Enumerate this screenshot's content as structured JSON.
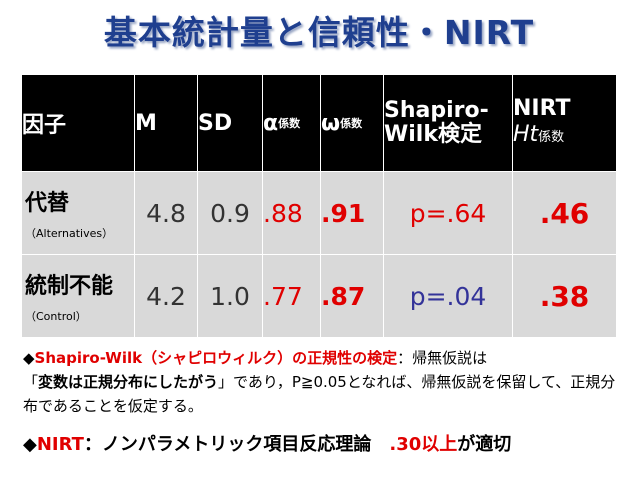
{
  "title": "基本統計量と信頼性・NIRT",
  "table": {
    "headers": {
      "factor": "因子",
      "m": "M",
      "sd": "SD",
      "alpha": "α",
      "alpha_sub": "係数",
      "omega": "ω",
      "omega_sub": "係数",
      "shapiro_line1": "Shapiro-",
      "shapiro_line2": "Wilk検定",
      "nirt_line1": "NIRT",
      "nirt_ht": "Ht",
      "nirt_sub": "係数"
    },
    "rows": [
      {
        "name": "代替",
        "sub": "（Alternatives）",
        "m": "4.8",
        "sd": "0.9",
        "alpha": ".88",
        "omega": ".91",
        "p": "p=.64",
        "p_color": "#e00000",
        "nirt": ".46"
      },
      {
        "name": "統制不能",
        "sub": "（Control）",
        "m": "4.2",
        "sd": "1.0",
        "alpha": ".77",
        "omega": ".87",
        "p": "p=.04",
        "p_color": "#333399",
        "nirt": ".38"
      }
    ]
  },
  "note": {
    "bullet": "◆",
    "red_part": "Shapiro-Wilk（シャピロウィルク）の正規性の検定",
    "rest1": "：帰無仮説は",
    "quote_open": "「",
    "bold_part": "変数は正規分布にしたがう",
    "rest2": "」であり，P≧0.05となれば、帰無仮説を保留して、正規分布であることを仮定する。"
  },
  "note2": {
    "bullet": "◆",
    "red_part": "NIRT",
    "mid": "：ノンパラメトリック項目反応理論　",
    "red_part2": ".30以上",
    "tail": "が適切"
  },
  "colors": {
    "title": "#1f3f8f",
    "accent": "#e00000",
    "header_bg": "#000000",
    "cell_bg": "#d9d9d9"
  }
}
